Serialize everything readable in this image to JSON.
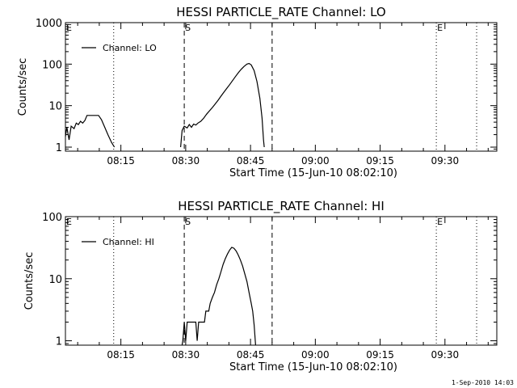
{
  "footer_text": "1-Sep-2010 14:03",
  "colors": {
    "background": "#ffffff",
    "foreground": "#000000"
  },
  "chart_data": [
    {
      "type": "line",
      "title": "HESSI PARTICLE_RATE Channel: LO",
      "xlabel": "Start Time (15-Jun-10 08:02:10)",
      "ylabel": "Counts/sec",
      "y_scale": "log",
      "ylim": [
        0.8,
        1000
      ],
      "xlim": [
        "08:02:10",
        "09:42:00"
      ],
      "x_ticks": [
        "08:15",
        "08:30",
        "08:45",
        "09:00",
        "09:15",
        "09:30"
      ],
      "y_ticks": [
        "1",
        "10",
        "100",
        "1000"
      ],
      "legend": {
        "position": "top-left",
        "entries": [
          "Channel: LO"
        ]
      },
      "markers": [
        {
          "time": "08:02:10",
          "style": "dashed",
          "label": "E"
        },
        {
          "time": "08:13:20",
          "style": "dotted",
          "label": ""
        },
        {
          "time": "08:29:40",
          "style": "dashed",
          "label": "S"
        },
        {
          "time": "08:50:00",
          "style": "dashed",
          "label": ""
        },
        {
          "time": "09:28:00",
          "style": "dotted",
          "label": "E"
        },
        {
          "time": "09:37:20",
          "style": "dotted",
          "label": ""
        }
      ],
      "series": [
        {
          "name": "Channel: LO",
          "segments": [
            [
              [
                "08:02:10",
                1.8
              ],
              [
                "08:02:30",
                3.0
              ],
              [
                "08:03:00",
                1.5
              ],
              [
                "08:03:30",
                3.2
              ],
              [
                "08:04:10",
                2.8
              ],
              [
                "08:04:40",
                3.8
              ],
              [
                "08:05:10",
                3.5
              ],
              [
                "08:05:40",
                4.2
              ],
              [
                "08:06:10",
                3.8
              ],
              [
                "08:06:40",
                4.4
              ],
              [
                "08:07:10",
                5.8
              ],
              [
                "08:08:10",
                5.8
              ],
              [
                "08:09:10",
                5.8
              ],
              [
                "08:09:50",
                5.8
              ],
              [
                "08:10:30",
                4.6
              ],
              [
                "08:11:10",
                3.2
              ],
              [
                "08:12:00",
                2.0
              ],
              [
                "08:12:50",
                1.3
              ],
              [
                "08:13:30",
                1.0
              ]
            ],
            [
              [
                "08:28:50",
                1.0
              ],
              [
                "08:29:10",
                2.5
              ],
              [
                "08:29:40",
                3.2
              ],
              [
                "08:30:20",
                2.9
              ],
              [
                "08:30:50",
                3.5
              ],
              [
                "08:31:20",
                3.0
              ],
              [
                "08:31:50",
                3.6
              ],
              [
                "08:32:20",
                3.4
              ],
              [
                "08:32:50",
                3.8
              ],
              [
                "08:33:30",
                4.2
              ],
              [
                "08:34:10",
                5.0
              ],
              [
                "08:34:50",
                6.2
              ],
              [
                "08:35:30",
                7.5
              ],
              [
                "08:36:10",
                9.0
              ],
              [
                "08:36:50",
                11.0
              ],
              [
                "08:37:30",
                13.5
              ],
              [
                "08:38:10",
                17.0
              ],
              [
                "08:38:50",
                21.0
              ],
              [
                "08:39:30",
                26.0
              ],
              [
                "08:40:10",
                32.0
              ],
              [
                "08:40:50",
                40.0
              ],
              [
                "08:41:30",
                50.0
              ],
              [
                "08:42:10",
                62.0
              ],
              [
                "08:42:50",
                75.0
              ],
              [
                "08:43:30",
                88.0
              ],
              [
                "08:44:10",
                100.0
              ],
              [
                "08:44:40",
                104.0
              ],
              [
                "08:45:10",
                96.0
              ],
              [
                "08:45:50",
                70.0
              ],
              [
                "08:46:30",
                38.0
              ],
              [
                "08:47:10",
                15.0
              ],
              [
                "08:47:40",
                5.0
              ],
              [
                "08:48:00",
                1.5
              ],
              [
                "08:48:10",
                1.0
              ]
            ]
          ]
        }
      ]
    },
    {
      "type": "line",
      "title": "HESSI PARTICLE_RATE Channel: HI",
      "xlabel": "Start Time (15-Jun-10 08:02:10)",
      "ylabel": "Counts/sec",
      "y_scale": "log",
      "ylim": [
        0.85,
        100
      ],
      "xlim": [
        "08:02:10",
        "09:42:00"
      ],
      "x_ticks": [
        "08:15",
        "08:30",
        "08:45",
        "09:00",
        "09:15",
        "09:30"
      ],
      "y_ticks": [
        "1",
        "10",
        "100"
      ],
      "legend": {
        "position": "top-left",
        "entries": [
          "Channel: HI"
        ]
      },
      "markers": [
        {
          "time": "08:02:10",
          "style": "dashed",
          "label": "E"
        },
        {
          "time": "08:13:20",
          "style": "dotted",
          "label": ""
        },
        {
          "time": "08:29:40",
          "style": "dashed",
          "label": "S"
        },
        {
          "time": "08:50:00",
          "style": "dashed",
          "label": ""
        },
        {
          "time": "09:28:00",
          "style": "dotted",
          "label": "E"
        },
        {
          "time": "09:37:20",
          "style": "dotted",
          "label": ""
        }
      ],
      "series": [
        {
          "name": "Channel: HI",
          "segments": [
            [
              [
                "08:29:10",
                0.85
              ],
              [
                "08:29:20",
                1.0
              ],
              [
                "08:29:40",
                2.0
              ],
              [
                "08:30:00",
                1.0
              ],
              [
                "08:30:20",
                2.0
              ],
              [
                "08:32:20",
                2.0
              ],
              [
                "08:32:40",
                1.0
              ],
              [
                "08:33:00",
                2.0
              ],
              [
                "08:34:20",
                2.0
              ],
              [
                "08:34:40",
                3.0
              ],
              [
                "08:35:20",
                3.0
              ],
              [
                "08:35:40",
                4.0
              ],
              [
                "08:36:10",
                5.0
              ],
              [
                "08:36:40",
                6.0
              ],
              [
                "08:37:10",
                8.0
              ],
              [
                "08:37:40",
                10.0
              ],
              [
                "08:38:10",
                13.0
              ],
              [
                "08:38:40",
                17.0
              ],
              [
                "08:39:10",
                21.0
              ],
              [
                "08:39:40",
                25.0
              ],
              [
                "08:40:10",
                29.0
              ],
              [
                "08:40:40",
                32.0
              ],
              [
                "08:41:10",
                31.0
              ],
              [
                "08:41:40",
                28.0
              ],
              [
                "08:42:10",
                24.0
              ],
              [
                "08:42:40",
                20.0
              ],
              [
                "08:43:10",
                16.0
              ],
              [
                "08:43:40",
                12.0
              ],
              [
                "08:44:10",
                9.0
              ],
              [
                "08:44:40",
                6.0
              ],
              [
                "08:45:10",
                4.0
              ],
              [
                "08:45:30",
                3.0
              ],
              [
                "08:45:50",
                1.8
              ],
              [
                "08:46:10",
                0.85
              ]
            ]
          ]
        }
      ]
    }
  ]
}
